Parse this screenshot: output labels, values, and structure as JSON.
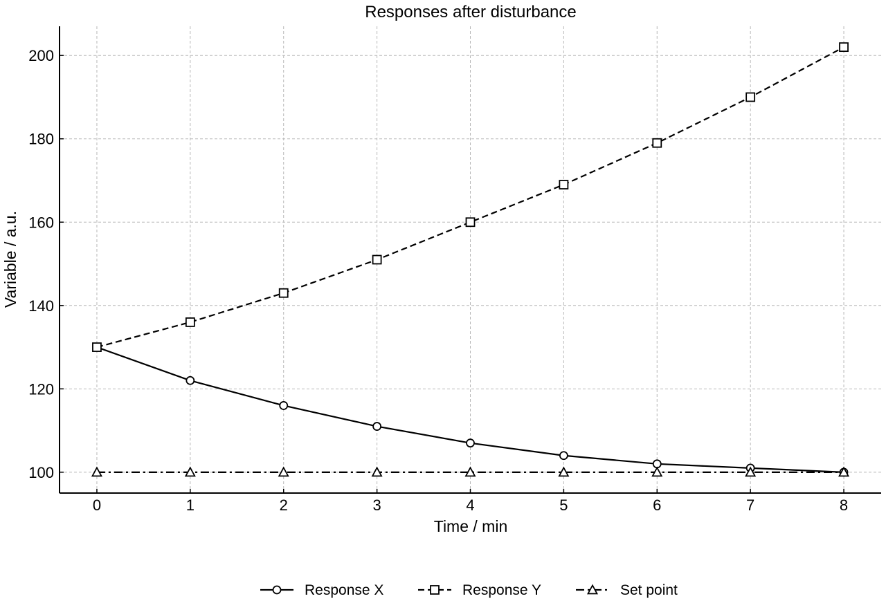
{
  "chart_data": {
    "type": "line",
    "title": "Responses after disturbance",
    "xlabel": "Time / min",
    "ylabel": "Variable / a.u.",
    "x": [
      0,
      1,
      2,
      3,
      4,
      5,
      6,
      7,
      8
    ],
    "xlim": [
      -0.4,
      8.4
    ],
    "ylim": [
      95,
      207
    ],
    "xticks": [
      0,
      1,
      2,
      3,
      4,
      5,
      6,
      7,
      8
    ],
    "yticks": [
      100,
      120,
      140,
      160,
      180,
      200
    ],
    "grid": true,
    "legend_position": "bottom-center",
    "series": [
      {
        "name": "Response X",
        "values": [
          130,
          122,
          116,
          111,
          107,
          104,
          102,
          101,
          100
        ],
        "marker": "circle",
        "line_style": "solid",
        "color": "#000000"
      },
      {
        "name": "Response Y",
        "values": [
          130,
          136,
          143,
          151,
          160,
          169,
          179,
          190,
          202
        ],
        "marker": "square",
        "line_style": "dashed",
        "color": "#000000"
      },
      {
        "name": "Set point",
        "values": [
          100,
          100,
          100,
          100,
          100,
          100,
          100,
          100,
          100
        ],
        "marker": "triangle",
        "line_style": "dashdot",
        "color": "#000000"
      }
    ]
  }
}
